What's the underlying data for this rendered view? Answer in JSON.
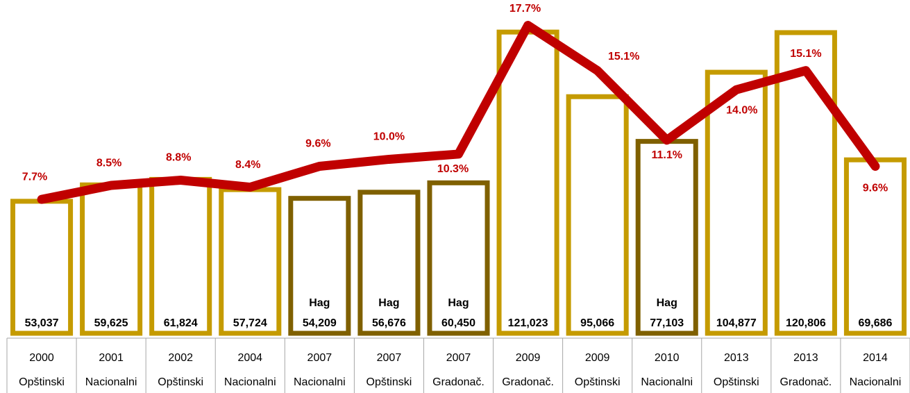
{
  "chart_data": {
    "type": "bar-line",
    "categories": [
      "2000",
      "2001",
      "2002",
      "2004",
      "2007",
      "2007",
      "2007",
      "2009",
      "2009",
      "2010",
      "2013",
      "2013",
      "2014"
    ],
    "category_groups": [
      "Opštinski",
      "Nacionalni",
      "Opštinski",
      "Nacionalni",
      "Nacionalni",
      "Opštinski",
      "Gradonač.",
      "Gradonač.",
      "Opštinski",
      "Nacionalni",
      "Opštinski",
      "Gradonač.",
      "Nacionalni"
    ],
    "series": [
      {
        "type": "bar",
        "values": [
          53037,
          59625,
          61824,
          57724,
          54209,
          56676,
          60450,
          121023,
          95066,
          77103,
          104877,
          120806,
          69686
        ],
        "value_labels": [
          "53,037",
          "59,625",
          "61,824",
          "57,724",
          "54,209",
          "56,676",
          "60,450",
          "121,023",
          "95,066",
          "77,103",
          "104,877",
          "120,806",
          "69,686"
        ],
        "annotations": [
          null,
          null,
          null,
          null,
          "Hag",
          "Hag",
          "Hag",
          null,
          null,
          "Hag",
          null,
          null,
          null
        ],
        "colors": [
          "#c59b00",
          "#c59b00",
          "#c59b00",
          "#c59b00",
          "#7f6000",
          "#7f6000",
          "#7f6000",
          "#c59b00",
          "#c59b00",
          "#7f6000",
          "#c59b00",
          "#c59b00",
          "#c59b00"
        ]
      },
      {
        "type": "line",
        "axis": "y2",
        "color": "#c00000",
        "values": [
          7.7,
          8.5,
          8.8,
          8.4,
          9.6,
          10.0,
          10.3,
          17.7,
          15.1,
          11.1,
          14.0,
          15.1,
          9.6
        ],
        "value_labels": [
          "7.7%",
          "8.5%",
          "8.8%",
          "8.4%",
          "9.6%",
          "10.0%",
          "10.3%",
          "17.7%",
          "15.1%",
          "11.1%",
          "14.0%",
          "15.1%",
          "9.6%"
        ]
      }
    ],
    "ylim": [
      0,
      130000
    ],
    "y2lim": [
      0,
      18.6
    ]
  }
}
